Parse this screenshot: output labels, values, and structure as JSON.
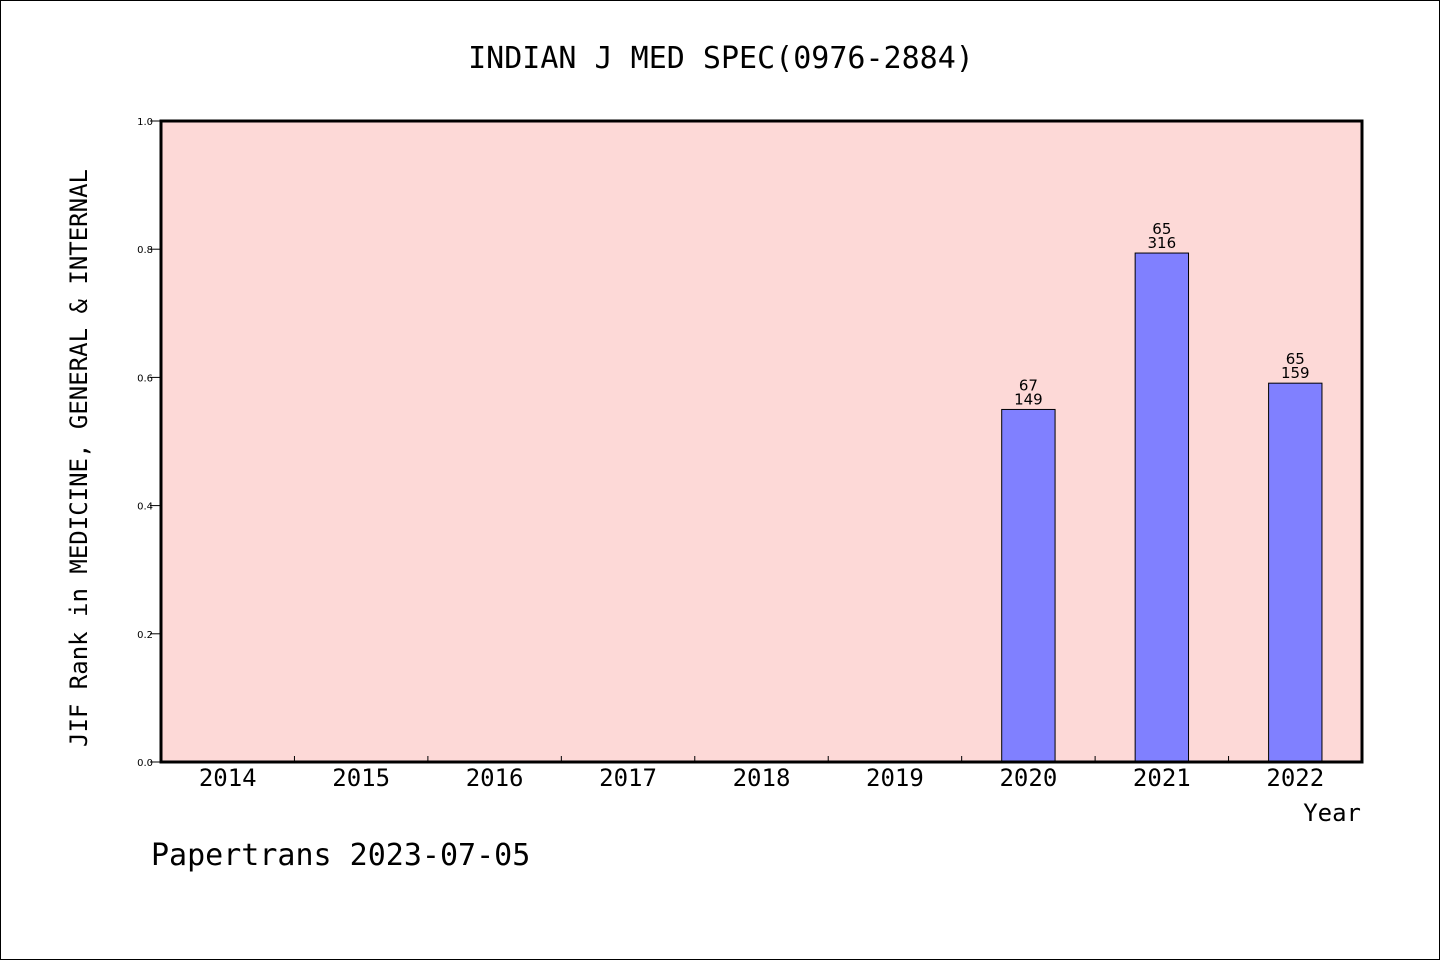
{
  "chart_data": {
    "type": "bar",
    "title": "INDIAN J MED SPEC(0976-2884)",
    "xlabel": "Year",
    "ylabel": "JIF Rank in MEDICINE, GENERAL & INTERNAL",
    "categories": [
      "2014",
      "2015",
      "2016",
      "2017",
      "2018",
      "2019",
      "2020",
      "2021",
      "2022"
    ],
    "values": [
      null,
      null,
      null,
      null,
      null,
      null,
      0.55,
      0.794,
      0.591
    ],
    "bar_labels": [
      null,
      null,
      null,
      null,
      null,
      null,
      {
        "rank": "67",
        "total": "149"
      },
      {
        "rank": "65",
        "total": "316"
      },
      {
        "rank": "65",
        "total": "159"
      }
    ],
    "ylim": [
      0,
      1.0
    ],
    "yticks": [
      "0.0",
      "0.2",
      "0.4",
      "0.6",
      "0.8",
      "1.0"
    ],
    "grid": false,
    "colors": {
      "plot_background": "#fdd9d7",
      "bar_fill": "#8080ff",
      "bar_stroke": "#000000"
    }
  },
  "footer": {
    "text": "Papertrans 2023-07-05"
  }
}
